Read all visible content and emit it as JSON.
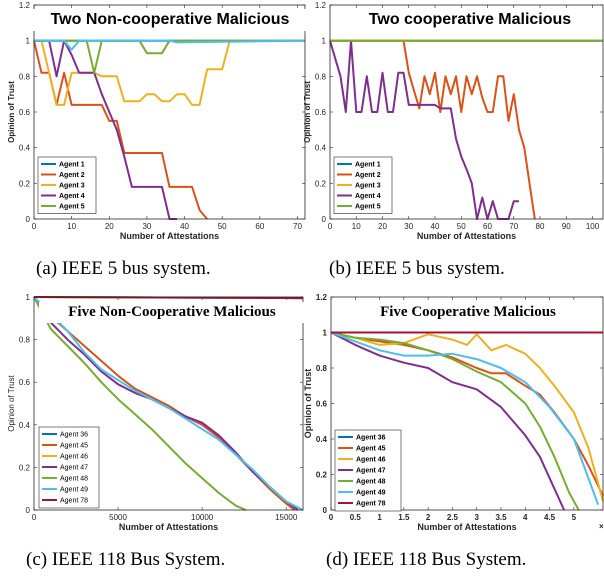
{
  "chart_data": [
    {
      "type": "line",
      "title": "Two Non-cooperative Malicious",
      "xlabel": "Number of Attestations",
      "ylabel": "Opinion of Trust",
      "xlim": [
        0,
        72
      ],
      "ylim": [
        0,
        1.2
      ],
      "xticks": [
        "0",
        "10",
        "20",
        "30",
        "40",
        "50",
        "60",
        "70"
      ],
      "yticks": [
        "0",
        "0.2",
        "0.4",
        "0.6",
        "0.8",
        "1",
        "1.2"
      ],
      "xtick_values": [
        0,
        10,
        20,
        30,
        40,
        50,
        60,
        70
      ],
      "ytick_values": [
        0,
        0.2,
        0.4,
        0.6,
        0.8,
        1,
        1.2
      ],
      "legend_position": "bottom-left",
      "series": [
        {
          "name": "Agent 1",
          "color": "#0072BD",
          "x": [
            0,
            72
          ],
          "y": [
            1,
            1
          ]
        },
        {
          "name": "Agent 2",
          "color": "#D95319",
          "x": [
            0,
            2,
            4,
            6,
            8,
            10,
            12,
            14,
            16,
            18,
            20,
            22,
            24,
            26,
            28,
            30,
            32,
            34,
            36,
            38,
            40,
            42,
            44,
            46
          ],
          "y": [
            1,
            0.82,
            0.82,
            0.64,
            0.82,
            0.64,
            0.64,
            0.64,
            0.64,
            0.64,
            0.55,
            0.55,
            0.37,
            0.37,
            0.37,
            0.37,
            0.37,
            0.37,
            0.18,
            0.18,
            0.18,
            0.18,
            0.05,
            0
          ]
        },
        {
          "name": "Agent 3",
          "color": "#EDB120",
          "x": [
            0,
            2,
            4,
            6,
            8,
            10,
            12,
            14,
            16,
            18,
            20,
            22,
            24,
            26,
            28,
            30,
            32,
            34,
            36,
            38,
            40,
            42,
            44,
            46,
            48,
            50,
            52,
            72
          ],
          "y": [
            1,
            1,
            0.82,
            0.64,
            0.64,
            0.82,
            0.82,
            0.82,
            0.82,
            0.8,
            0.8,
            0.8,
            0.66,
            0.66,
            0.66,
            0.7,
            0.7,
            0.66,
            0.66,
            0.7,
            0.7,
            0.64,
            0.64,
            0.84,
            0.84,
            0.84,
            1,
            1
          ]
        },
        {
          "name": "Agent 4",
          "color": "#7E2F8E",
          "x": [
            0,
            2,
            4,
            6,
            8,
            10,
            12,
            14,
            16,
            18,
            20,
            22,
            24,
            26,
            28,
            30,
            32,
            34,
            36,
            38
          ],
          "y": [
            1,
            1,
            1,
            0.8,
            1,
            0.92,
            0.82,
            0.82,
            0.82,
            0.7,
            0.6,
            0.5,
            0.35,
            0.18,
            0.18,
            0.18,
            0.18,
            0.18,
            0,
            0
          ]
        },
        {
          "name": "Agent 5",
          "color": "#77AC30",
          "x": [
            0,
            14,
            16,
            18,
            20,
            28,
            30,
            34,
            36,
            40,
            72
          ],
          "y": [
            1,
            1,
            0.82,
            1,
            1,
            1,
            0.93,
            0.93,
            1,
            1,
            1
          ]
        },
        {
          "name": "",
          "color": "#4DBEEE",
          "x": [
            0,
            8,
            10,
            12,
            36,
            38,
            72
          ],
          "y": [
            1,
            1,
            0.95,
            1,
            1,
            0.99,
            1
          ]
        }
      ]
    },
    {
      "type": "line",
      "title": "Two cooperative Malicious",
      "xlabel": "Number of Attestations",
      "ylabel": "Opinion of Trust",
      "xlim": [
        0,
        104
      ],
      "ylim": [
        0,
        1.2
      ],
      "xticks": [
        "0",
        "10",
        "20",
        "30",
        "40",
        "50",
        "60",
        "70",
        "80",
        "90",
        "100"
      ],
      "yticks": [
        "0",
        "0.2",
        "0.4",
        "0.6",
        "0.8",
        "1",
        "1.2"
      ],
      "xtick_values": [
        0,
        10,
        20,
        30,
        40,
        50,
        60,
        70,
        80,
        90,
        100
      ],
      "ytick_values": [
        0,
        0.2,
        0.4,
        0.6,
        0.8,
        1,
        1.2
      ],
      "legend_position": "bottom-left",
      "series": [
        {
          "name": "Agent 1",
          "color": "#0072BD",
          "x": [
            0,
            104
          ],
          "y": [
            1,
            1
          ]
        },
        {
          "name": "Agent 2",
          "color": "#D95319",
          "x": [
            0,
            28,
            30,
            32,
            34,
            36,
            38,
            40,
            42,
            44,
            46,
            48,
            50,
            52,
            54,
            56,
            58,
            60,
            62,
            64,
            66,
            68,
            70,
            72,
            74,
            76,
            78
          ],
          "y": [
            1,
            1,
            0.82,
            0.72,
            0.62,
            0.8,
            0.7,
            0.82,
            0.6,
            0.8,
            0.7,
            0.8,
            0.6,
            0.8,
            0.7,
            0.8,
            0.68,
            0.6,
            0.6,
            0.8,
            0.8,
            0.55,
            0.7,
            0.5,
            0.4,
            0.2,
            0
          ]
        },
        {
          "name": "Agent 3",
          "color": "#EDB120",
          "x": [
            0,
            104
          ],
          "y": [
            1,
            1
          ]
        },
        {
          "name": "Agent 4",
          "color": "#7E2F8E",
          "x": [
            0,
            4,
            6,
            8,
            10,
            12,
            14,
            16,
            18,
            20,
            22,
            24,
            26,
            28,
            30,
            32,
            34,
            36,
            38,
            40,
            42,
            44,
            46,
            48,
            50,
            52,
            54,
            56,
            58,
            60,
            62,
            64,
            66,
            68,
            70,
            72
          ],
          "y": [
            1,
            0.8,
            0.6,
            1,
            0.6,
            0.6,
            0.8,
            0.6,
            0.6,
            0.82,
            0.6,
            0.6,
            0.82,
            0.82,
            0.64,
            0.64,
            0.64,
            0.64,
            0.64,
            0.64,
            0.62,
            0.62,
            0.62,
            0.45,
            0.35,
            0.28,
            0.2,
            0,
            0.12,
            0,
            0.1,
            0,
            0,
            0,
            0.1,
            0.1
          ]
        },
        {
          "name": "Agent 5",
          "color": "#77AC30",
          "x": [
            0,
            104
          ],
          "y": [
            1,
            1
          ]
        }
      ]
    },
    {
      "type": "line",
      "title": "Five Non-Cooperative Malicious",
      "xlabel": "Number of Attestations",
      "ylabel": "Opinion of Trust",
      "xlim": [
        0,
        16000
      ],
      "ylim": [
        0,
        1
      ],
      "xticks": [
        "0",
        "5000",
        "10000",
        "15000"
      ],
      "yticks": [
        "0",
        "0.2",
        "0.4",
        "0.6",
        "0.8",
        "1"
      ],
      "xtick_values": [
        0,
        5000,
        10000,
        15000
      ],
      "ytick_values": [
        0,
        0.2,
        0.4,
        0.6,
        0.8,
        1
      ],
      "legend_position": "bottom-left",
      "series": [
        {
          "name": "Agent 36",
          "color": "#0072BD",
          "x": [
            0,
            16000
          ],
          "y": [
            1,
            0.995
          ]
        },
        {
          "name": "Agent 45",
          "color": "#D95319",
          "x": [
            0,
            1000,
            2000,
            3000,
            4000,
            5000,
            6000,
            7000,
            8000,
            9000,
            10000,
            11000,
            12000,
            13000,
            14000,
            15000,
            15500
          ],
          "y": [
            1,
            0.91,
            0.84,
            0.77,
            0.7,
            0.63,
            0.57,
            0.53,
            0.49,
            0.44,
            0.4,
            0.34,
            0.26,
            0.18,
            0.1,
            0.03,
            0
          ]
        },
        {
          "name": "Agent 46",
          "color": "#EDB120",
          "x": [
            0,
            16000
          ],
          "y": [
            1,
            0.995
          ]
        },
        {
          "name": "Agent 47",
          "color": "#7E2F8E",
          "x": [
            0,
            1000,
            2000,
            3000,
            4000,
            5000,
            6000,
            7000,
            8000,
            9000,
            10000,
            11000,
            12000,
            13000,
            14000,
            15000,
            15700
          ],
          "y": [
            1,
            0.88,
            0.8,
            0.73,
            0.65,
            0.59,
            0.55,
            0.52,
            0.48,
            0.44,
            0.41,
            0.35,
            0.27,
            0.18,
            0.11,
            0.04,
            0
          ]
        },
        {
          "name": "Agent 48",
          "color": "#77AC30",
          "x": [
            0,
            1000,
            2000,
            3000,
            4000,
            5000,
            6000,
            7000,
            8000,
            9000,
            10000,
            11000,
            12000,
            12600
          ],
          "y": [
            1,
            0.85,
            0.77,
            0.69,
            0.6,
            0.52,
            0.45,
            0.38,
            0.3,
            0.22,
            0.15,
            0.08,
            0.02,
            0
          ]
        },
        {
          "name": "Agent 49",
          "color": "#4DBEEE",
          "x": [
            0,
            1000,
            2000,
            3000,
            4000,
            5000,
            6000,
            7000,
            8000,
            9000,
            10000,
            11000,
            12000,
            13000,
            14000,
            15000,
            16000
          ],
          "y": [
            1,
            0.92,
            0.84,
            0.74,
            0.66,
            0.61,
            0.56,
            0.52,
            0.48,
            0.43,
            0.38,
            0.33,
            0.26,
            0.19,
            0.11,
            0.04,
            0
          ]
        },
        {
          "name": "Agent 78",
          "color": "#A2142F",
          "x": [
            0,
            16000
          ],
          "y": [
            1,
            0.995
          ]
        }
      ]
    },
    {
      "type": "line",
      "title": "Five Cooperative Malicious",
      "xlabel": "Number of Attestations",
      "ylabel": "Opinion of Trust",
      "x_exponent_label": "×10⁴",
      "xlim": [
        0,
        5.6
      ],
      "ylim": [
        0,
        1.2
      ],
      "xticks": [
        "0",
        "0.5",
        "1",
        "1.5",
        "2",
        "2.5",
        "3",
        "3.5",
        "4",
        "4.5",
        "5"
      ],
      "yticks": [
        "0",
        "0.2",
        "0.4",
        "0.6",
        "0.8",
        "1",
        "1.2"
      ],
      "xtick_values": [
        0,
        0.5,
        1,
        1.5,
        2,
        2.5,
        3,
        3.5,
        4,
        4.5,
        5
      ],
      "ytick_values": [
        0,
        0.2,
        0.4,
        0.6,
        0.8,
        1,
        1.2
      ],
      "legend_position": "bottom-left",
      "series": [
        {
          "name": "Agent 36",
          "color": "#0072BD",
          "x": [
            0,
            5.6
          ],
          "y": [
            1,
            1
          ]
        },
        {
          "name": "Agent 45",
          "color": "#D95319",
          "x": [
            0,
            0.5,
            1,
            1.5,
            2,
            2.5,
            3,
            3.3,
            3.6,
            4,
            4.3,
            4.6,
            5,
            5.3,
            5.6
          ],
          "y": [
            1,
            0.97,
            0.95,
            0.93,
            0.9,
            0.86,
            0.8,
            0.77,
            0.77,
            0.7,
            0.65,
            0.55,
            0.4,
            0.25,
            0.08
          ]
        },
        {
          "name": "Agent 46",
          "color": "#EDB120",
          "x": [
            0,
            0.5,
            1,
            1.5,
            2,
            2.5,
            2.8,
            3,
            3.3,
            3.6,
            4,
            4.3,
            4.6,
            5,
            5.3,
            5.6
          ],
          "y": [
            1,
            0.97,
            0.93,
            0.94,
            0.99,
            0.96,
            0.93,
            0.99,
            0.9,
            0.93,
            0.88,
            0.8,
            0.7,
            0.55,
            0.35,
            0.05
          ]
        },
        {
          "name": "Agent 47",
          "color": "#7E2F8E",
          "x": [
            0,
            0.5,
            1,
            1.5,
            2,
            2.5,
            3,
            3.5,
            4,
            4.3,
            4.6,
            4.8
          ],
          "y": [
            1,
            0.93,
            0.87,
            0.83,
            0.8,
            0.72,
            0.68,
            0.58,
            0.42,
            0.3,
            0.12,
            0
          ]
        },
        {
          "name": "Agent 48",
          "color": "#77AC30",
          "x": [
            0,
            0.5,
            1,
            1.5,
            2,
            2.5,
            3,
            3.5,
            4,
            4.3,
            4.6,
            4.9,
            5.1
          ],
          "y": [
            1,
            0.97,
            0.96,
            0.94,
            0.9,
            0.85,
            0.78,
            0.72,
            0.6,
            0.47,
            0.3,
            0.1,
            0
          ]
        },
        {
          "name": "Agent 49",
          "color": "#4DBEEE",
          "x": [
            0,
            0.5,
            1,
            1.5,
            2,
            2.5,
            3,
            3.5,
            4,
            4.5,
            5,
            5.3,
            5.5
          ],
          "y": [
            1,
            0.95,
            0.9,
            0.87,
            0.87,
            0.88,
            0.85,
            0.8,
            0.72,
            0.58,
            0.4,
            0.18,
            0.03
          ]
        },
        {
          "name": "Agent 78",
          "color": "#A2142F",
          "x": [
            0,
            5.6
          ],
          "y": [
            1,
            1
          ]
        }
      ]
    }
  ],
  "captions": {
    "a": "(a) IEEE 5 bus system.",
    "b": "(b) IEEE 5 bus system.",
    "c": "(c) IEEE 118 Bus System.",
    "d": "(d) IEEE 118 Bus System."
  }
}
